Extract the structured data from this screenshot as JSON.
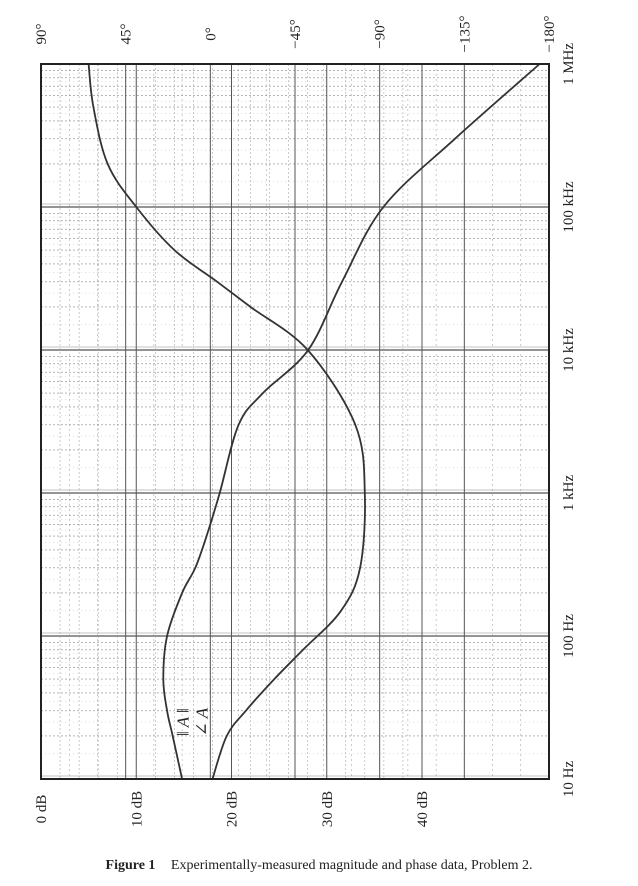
{
  "chart_data": {
    "type": "line",
    "orientation": "rotated-90",
    "x_axis": {
      "scale": "log",
      "range": [
        10,
        1000000
      ],
      "tick_values": [
        10,
        100,
        1000,
        10000,
        100000,
        1000000
      ],
      "tick_labels": [
        "10 Hz",
        "100 Hz",
        "1 kHz",
        "10 kHz",
        "100 kHz",
        "1 MHz"
      ]
    },
    "magnitude_axis": {
      "range": [
        0,
        40
      ],
      "tick_values": [
        0,
        10,
        20,
        30,
        40
      ],
      "tick_labels": [
        "0 dB",
        "10 dB",
        "20 dB",
        "30 dB",
        "40 dB"
      ]
    },
    "phase_axis": {
      "range": [
        -180,
        90
      ],
      "tick_values": [
        90,
        45,
        0,
        -45,
        -90,
        -135,
        -180
      ],
      "tick_labels": [
        "90°",
        "45°",
        "0°",
        "−45°",
        "−90°",
        "−135°",
        "−180°"
      ]
    },
    "grid": true,
    "series": [
      {
        "name": "‖ A ‖",
        "axis": "magnitude",
        "x": [
          10,
          20,
          30,
          50,
          80,
          150,
          300,
          1000,
          3000,
          10000,
          20000,
          30000,
          50000,
          100000,
          200000,
          500000,
          1000000
        ],
        "y": [
          18,
          19.5,
          21.5,
          24.5,
          27.5,
          31.5,
          33.5,
          34,
          33,
          28,
          22,
          18.5,
          14,
          10,
          7,
          5.5,
          5
        ]
      },
      {
        "name": "∠ A",
        "axis": "phase",
        "x": [
          10,
          20,
          30,
          50,
          100,
          200,
          300,
          500,
          1000,
          3000,
          5000,
          10000,
          30000,
          100000,
          300000,
          1000000
        ],
        "y": [
          15,
          20,
          23,
          25,
          23,
          15,
          8,
          2,
          -5,
          -15,
          -28,
          -52,
          -70,
          -92,
          -130,
          -175
        ]
      }
    ]
  },
  "figure": {
    "label": "Figure 1",
    "caption": "Experimentally-measured magnitude and phase data, Problem 2."
  }
}
